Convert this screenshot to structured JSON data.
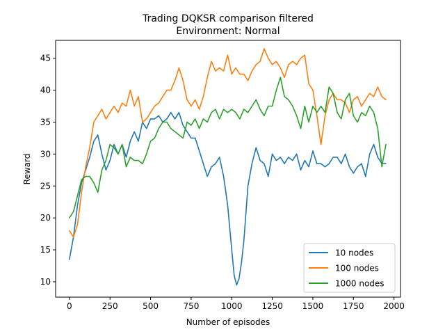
{
  "chart_data": {
    "type": "line",
    "title": "Trading DQKSR comparison filtered",
    "subtitle": "Environment: Normal",
    "xlabel": "Number of episodes",
    "ylabel": "Reward",
    "xlim": [
      -85,
      2040
    ],
    "ylim": [
      7.6,
      47.8
    ],
    "xticks": [
      0,
      250,
      500,
      750,
      1000,
      1250,
      1500,
      1750,
      2000
    ],
    "yticks": [
      10,
      15,
      20,
      25,
      30,
      35,
      40,
      45
    ],
    "legend_position": "lower right",
    "grid": false,
    "series": [
      {
        "name": "10 nodes",
        "color": "#1f77b4",
        "x": [
          0,
          25,
          50,
          75,
          100,
          125,
          150,
          175,
          200,
          225,
          250,
          275,
          300,
          325,
          350,
          375,
          400,
          425,
          450,
          475,
          500,
          525,
          550,
          575,
          600,
          625,
          650,
          675,
          700,
          725,
          750,
          775,
          800,
          825,
          850,
          875,
          900,
          925,
          950,
          975,
          1000,
          1015,
          1030,
          1045,
          1060,
          1075,
          1100,
          1125,
          1150,
          1175,
          1200,
          1225,
          1250,
          1275,
          1300,
          1325,
          1350,
          1375,
          1400,
          1425,
          1450,
          1475,
          1500,
          1525,
          1550,
          1575,
          1600,
          1625,
          1650,
          1675,
          1700,
          1725,
          1750,
          1775,
          1800,
          1825,
          1850,
          1875,
          1900,
          1925,
          1950
        ],
        "values": [
          13.5,
          17,
          22,
          25.5,
          27.5,
          29.5,
          32,
          33,
          30,
          27.5,
          29,
          31.5,
          30,
          31.5,
          29.5,
          32,
          33.5,
          32,
          35,
          34,
          35.5,
          35.5,
          36,
          35,
          35.5,
          36.5,
          35.5,
          36.5,
          34.5,
          33.5,
          32.5,
          32.5,
          30.5,
          28.5,
          26.5,
          28,
          28.5,
          29.5,
          26.5,
          22,
          15,
          11,
          9.5,
          10.5,
          13,
          16.5,
          25,
          28.5,
          31,
          29,
          28.5,
          26.5,
          30,
          29,
          29.5,
          28.5,
          29.5,
          29,
          30,
          27.5,
          29,
          28,
          30.5,
          28.5,
          28.5,
          28,
          28.5,
          29.5,
          29.5,
          28.5,
          30,
          28,
          27,
          28,
          28.5,
          26.5,
          30,
          31.5,
          29.5,
          28.5,
          28.5
        ]
      },
      {
        "name": "100 nodes",
        "color": "#ff7f0e",
        "x": [
          0,
          25,
          50,
          75,
          100,
          125,
          150,
          175,
          200,
          225,
          250,
          275,
          300,
          325,
          350,
          375,
          400,
          425,
          450,
          475,
          500,
          525,
          550,
          575,
          600,
          625,
          650,
          675,
          700,
          725,
          750,
          775,
          800,
          825,
          850,
          875,
          900,
          925,
          950,
          975,
          1000,
          1025,
          1050,
          1075,
          1100,
          1125,
          1150,
          1175,
          1200,
          1225,
          1250,
          1275,
          1300,
          1325,
          1350,
          1375,
          1400,
          1425,
          1450,
          1475,
          1500,
          1525,
          1550,
          1575,
          1600,
          1625,
          1650,
          1675,
          1700,
          1725,
          1750,
          1775,
          1800,
          1825,
          1850,
          1875,
          1900,
          1925,
          1950
        ],
        "values": [
          18,
          17,
          19,
          24,
          28,
          31,
          35,
          36,
          37,
          35.5,
          36.5,
          37.5,
          36.5,
          38,
          37.5,
          40,
          37.5,
          39,
          35,
          35.5,
          36.5,
          37.5,
          38,
          39,
          40,
          40,
          41.5,
          43.5,
          41.5,
          38.5,
          37.5,
          38.5,
          37,
          39,
          42,
          44.5,
          43,
          43.5,
          43,
          45.5,
          42.5,
          43.5,
          42.5,
          42.5,
          41.5,
          43,
          44,
          44.5,
          46.5,
          45,
          44,
          44.5,
          43.5,
          42,
          44,
          44.5,
          44,
          45,
          45.5,
          41,
          40,
          36,
          31.5,
          36,
          38.5,
          39.5,
          38.5,
          38.5,
          38,
          36.5,
          38.5,
          39,
          37.5,
          38.5,
          39.5,
          39,
          40.5,
          39,
          38.5
        ]
      },
      {
        "name": "1000 nodes",
        "color": "#2ca02c",
        "x": [
          0,
          25,
          50,
          75,
          100,
          125,
          150,
          175,
          200,
          225,
          250,
          275,
          300,
          325,
          350,
          375,
          400,
          425,
          450,
          475,
          500,
          525,
          550,
          575,
          600,
          625,
          650,
          675,
          700,
          725,
          750,
          775,
          800,
          825,
          850,
          875,
          900,
          925,
          950,
          975,
          1000,
          1025,
          1050,
          1075,
          1100,
          1125,
          1150,
          1175,
          1200,
          1225,
          1250,
          1275,
          1300,
          1325,
          1350,
          1375,
          1400,
          1425,
          1450,
          1475,
          1500,
          1525,
          1550,
          1575,
          1600,
          1625,
          1650,
          1675,
          1700,
          1725,
          1750,
          1775,
          1800,
          1825,
          1850,
          1875,
          1900,
          1925,
          1950
        ],
        "values": [
          20,
          21,
          23.5,
          26,
          26.5,
          26.5,
          25.5,
          24,
          27.5,
          29,
          31.5,
          31,
          30,
          31.5,
          28,
          29.5,
          29,
          29,
          28.5,
          30,
          32,
          32.5,
          34,
          35,
          35,
          34,
          33.5,
          33,
          32.5,
          35,
          34.5,
          35.5,
          34,
          35.5,
          35,
          36.5,
          37,
          35.5,
          37,
          36.5,
          37,
          36.5,
          35.5,
          37,
          36.5,
          37.5,
          38.5,
          37,
          36,
          37.5,
          37.5,
          40,
          42,
          39,
          38.5,
          37.5,
          36,
          34,
          37.5,
          35,
          37.5,
          36.5,
          37.5,
          36.5,
          40.5,
          39.5,
          36.5,
          35.5,
          38.5,
          39.5,
          36,
          35,
          36.5,
          36,
          37.5,
          36.5,
          34,
          28,
          31.5
        ]
      }
    ]
  }
}
